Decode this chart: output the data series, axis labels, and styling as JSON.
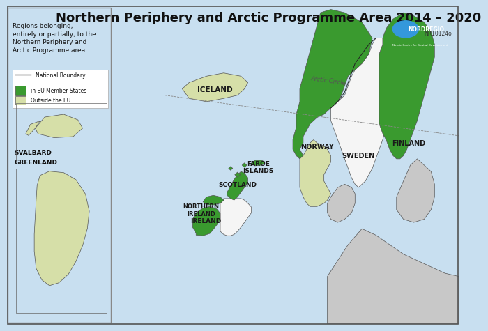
{
  "title": "Northern Periphery and Arctic Programme Area 2014 – 2020",
  "title_fontsize": 13,
  "background_color": "#c8dff0",
  "land_color_outside_eu": "#d6dfa8",
  "land_color_eu_member": "#3a9a2f",
  "land_color_white": "#f5f5f5",
  "land_color_gray": "#c8c8c8",
  "border_color": "#333333",
  "legend_text": [
    "National Boundary",
    "in EU Member States",
    "Outside the EU"
  ],
  "legend_colors": [
    "none",
    "#3a9a2f",
    "#d6dfa8"
  ],
  "inset_labels": [
    "SVALBARD",
    "GREENLAND"
  ],
  "ref_code": "NR10124o",
  "top_left_text": "Regions belonging,\nentirely or partially, to the\nNorthern Periphery and\nArctic Programme area"
}
